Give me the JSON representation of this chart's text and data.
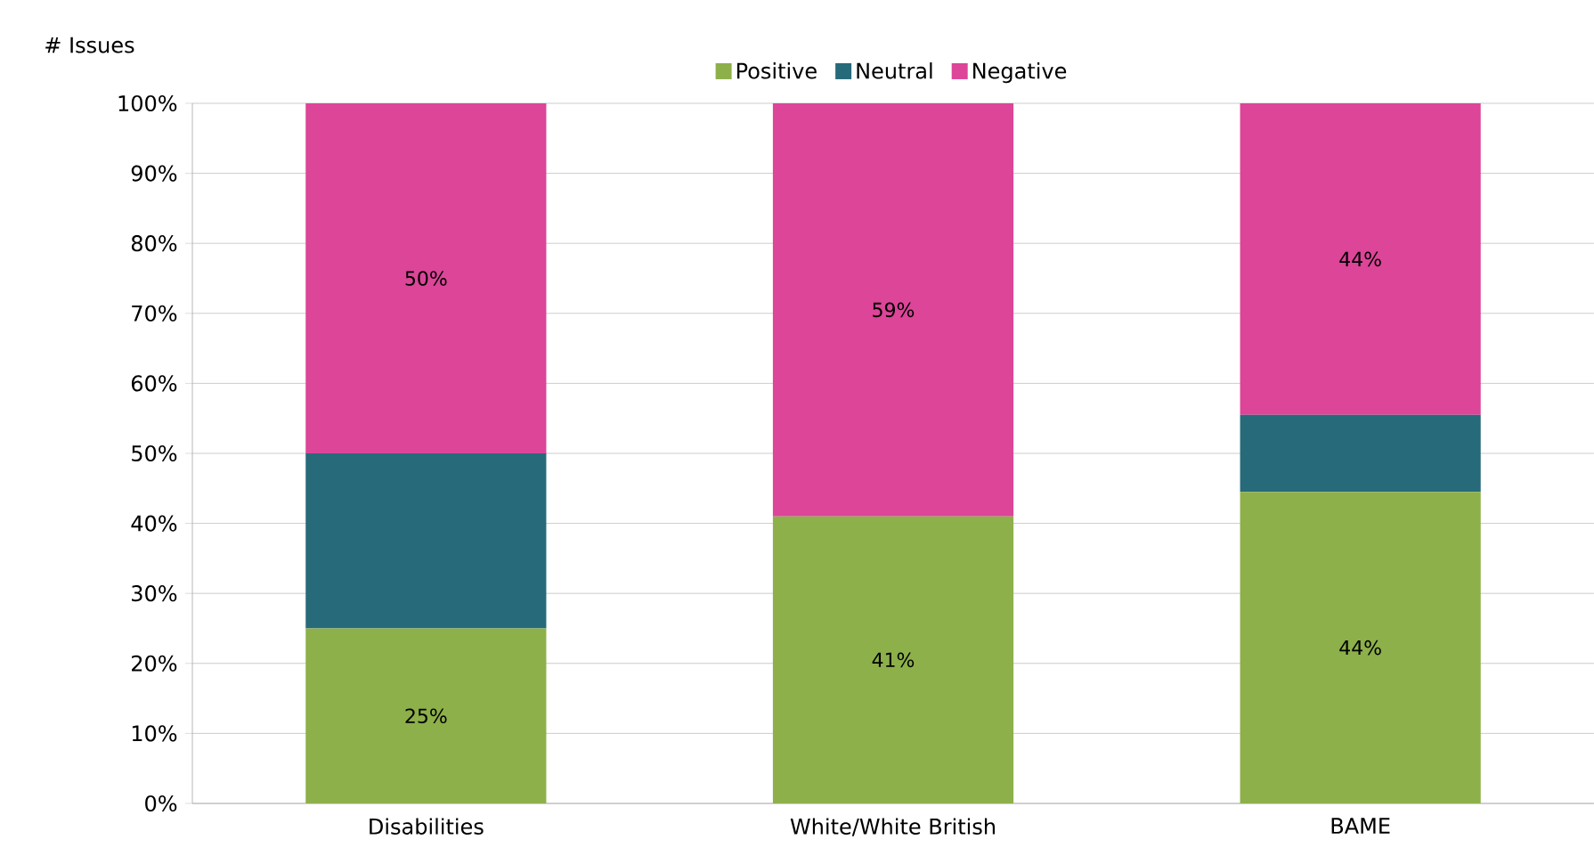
{
  "chart_data": {
    "type": "bar",
    "stacked": true,
    "ylabel": "# Issues",
    "categories": [
      "Disabilities",
      "White/White British",
      "BAME"
    ],
    "series": [
      {
        "name": "Positive",
        "color": "#8db04a",
        "values": [
          25,
          41,
          44.5
        ],
        "value_labels": [
          "25%",
          "41%",
          "44%"
        ]
      },
      {
        "name": "Neutral",
        "color": "#276a7a",
        "values": [
          25,
          0,
          11
        ],
        "value_labels": [
          null,
          null,
          null
        ]
      },
      {
        "name": "Negative",
        "color": "#dc4598",
        "values": [
          50,
          59,
          44.5
        ],
        "value_labels": [
          "50%",
          "59%",
          "44%"
        ]
      }
    ],
    "ylim": [
      0,
      100
    ],
    "yticks": [
      {
        "value": 0,
        "label": "0%"
      },
      {
        "value": 10,
        "label": "10%"
      },
      {
        "value": 20,
        "label": "20%"
      },
      {
        "value": 30,
        "label": "30%"
      },
      {
        "value": 40,
        "label": "40%"
      },
      {
        "value": 50,
        "label": "50%"
      },
      {
        "value": 60,
        "label": "60%"
      },
      {
        "value": 70,
        "label": "70%"
      },
      {
        "value": 80,
        "label": "80%"
      },
      {
        "value": 90,
        "label": "90%"
      },
      {
        "value": 100,
        "label": "100%"
      }
    ],
    "grid": "y",
    "legend": "top"
  }
}
